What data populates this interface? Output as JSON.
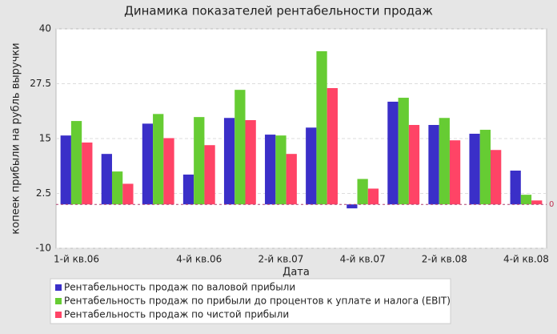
{
  "chart_data": {
    "type": "bar",
    "title": "Динамика показателей рентабельности продаж",
    "x_label": "Дата",
    "y_label": "копеек прибыли на рубль выручки",
    "categories": [
      "1-й кв.06",
      null,
      null,
      "4-й кв.06",
      null,
      "2-й кв.07",
      null,
      "4-й кв.07",
      null,
      "2-й кв.08",
      null,
      "4-й кв.08"
    ],
    "series": [
      {
        "name": "Рентабельность продаж по валовой прибыли",
        "color": "#3a2fc8",
        "values": [
          15.7,
          11.5,
          18.4,
          6.8,
          19.7,
          15.9,
          17.5,
          -0.9,
          23.4,
          18.1,
          16.1,
          7.7
        ]
      },
      {
        "name": "Рентабельность продаж по прибыли до процентов к уплате и налога (EBIT)",
        "color": "#66cc33",
        "values": [
          19.0,
          7.5,
          20.6,
          19.9,
          26.1,
          15.7,
          34.9,
          5.8,
          24.3,
          19.7,
          17.0,
          2.2
        ]
      },
      {
        "name": "Рентабельность продаж по чистой прибыли",
        "color": "#ff4466",
        "values": [
          14.1,
          4.7,
          15.1,
          13.5,
          19.2,
          11.5,
          26.5,
          3.6,
          18.1,
          14.6,
          12.4,
          0.9
        ]
      }
    ],
    "ylim": [
      -10,
      40
    ],
    "yticks": [
      -10,
      2.5,
      15,
      27.5,
      40
    ],
    "zero_line": 0,
    "grid": true
  }
}
